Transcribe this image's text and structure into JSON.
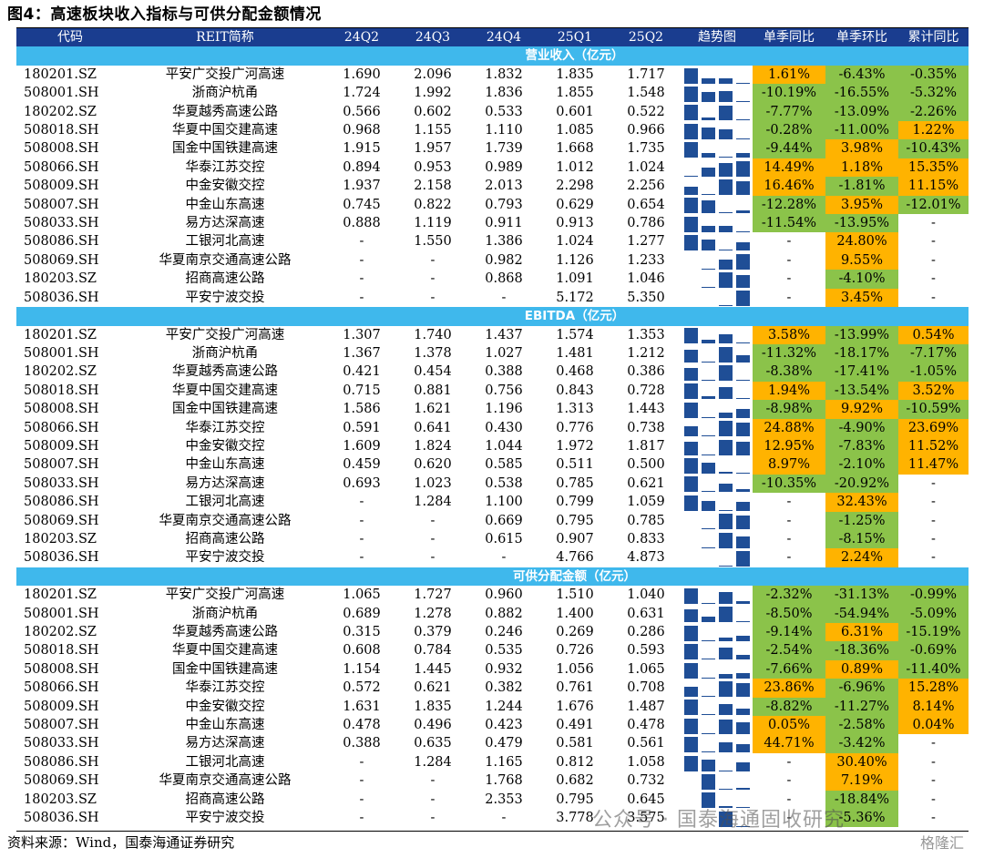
{
  "title": "图4：高速板块收入指标与可供分配金额情况",
  "headers": [
    "代码",
    "REIT简称",
    "24Q2",
    "24Q3",
    "24Q4",
    "25Q1",
    "25Q2",
    "趋势图",
    "单季同比",
    "单季环比",
    "累计同比"
  ],
  "sections": [
    {
      "title": "营业收入（亿元）",
      "rows": [
        {
          "code": "180201.SZ",
          "name": "平安广交投广河高速",
          "vals": [
            "1.690",
            "2.096",
            "1.832",
            "1.835",
            "1.717"
          ],
          "yoy": "1.61%",
          "qoq": "-6.43%",
          "cum": "-0.35%"
        },
        {
          "code": "508001.SH",
          "name": "浙商沪杭甬",
          "vals": [
            "1.724",
            "1.992",
            "1.836",
            "1.855",
            "1.548"
          ],
          "yoy": "-10.19%",
          "qoq": "-16.55%",
          "cum": "-5.32%"
        },
        {
          "code": "180202.SZ",
          "name": "华夏越秀高速公路",
          "vals": [
            "0.566",
            "0.602",
            "0.533",
            "0.601",
            "0.522"
          ],
          "yoy": "-7.77%",
          "qoq": "-13.09%",
          "cum": "-2.26%"
        },
        {
          "code": "508018.SH",
          "name": "华夏中国交建高速",
          "vals": [
            "0.968",
            "1.155",
            "1.110",
            "1.085",
            "0.966"
          ],
          "yoy": "-0.28%",
          "qoq": "-11.00%",
          "cum": "1.22%"
        },
        {
          "code": "508008.SH",
          "name": "国金中国铁建高速",
          "vals": [
            "1.915",
            "1.957",
            "1.739",
            "1.668",
            "1.735"
          ],
          "yoy": "-9.44%",
          "qoq": "3.98%",
          "cum": "-10.43%"
        },
        {
          "code": "508066.SH",
          "name": "华泰江苏交控",
          "vals": [
            "0.894",
            "0.953",
            "0.989",
            "1.012",
            "1.024"
          ],
          "yoy": "14.49%",
          "qoq": "1.18%",
          "cum": "15.35%"
        },
        {
          "code": "508009.SH",
          "name": "中金安徽交控",
          "vals": [
            "1.937",
            "2.158",
            "2.013",
            "2.298",
            "2.256"
          ],
          "yoy": "16.46%",
          "qoq": "-1.81%",
          "cum": "11.15%"
        },
        {
          "code": "508007.SH",
          "name": "中金山东高速",
          "vals": [
            "0.745",
            "0.822",
            "0.793",
            "0.629",
            "0.654"
          ],
          "yoy": "-12.28%",
          "qoq": "3.95%",
          "cum": "-12.01%"
        },
        {
          "code": "508033.SH",
          "name": "易方达深高速",
          "vals": [
            "0.888",
            "1.119",
            "0.911",
            "0.913",
            "0.786"
          ],
          "yoy": "-11.54%",
          "qoq": "-13.95%",
          "cum": "-"
        },
        {
          "code": "508086.SH",
          "name": "工银河北高速",
          "vals": [
            "-",
            "1.550",
            "1.386",
            "1.024",
            "1.277"
          ],
          "yoy": "-",
          "qoq": "24.80%",
          "cum": "-"
        },
        {
          "code": "508069.SH",
          "name": "华夏南京交通高速公路",
          "vals": [
            "-",
            "-",
            "0.982",
            "1.126",
            "1.233"
          ],
          "yoy": "-",
          "qoq": "9.55%",
          "cum": "-"
        },
        {
          "code": "180203.SZ",
          "name": "招商高速公路",
          "vals": [
            "-",
            "-",
            "0.868",
            "1.091",
            "1.046"
          ],
          "yoy": "-",
          "qoq": "-4.10%",
          "cum": "-"
        },
        {
          "code": "508036.SH",
          "name": "平安宁波交投",
          "vals": [
            "-",
            "-",
            "-",
            "5.172",
            "5.350"
          ],
          "yoy": "-",
          "qoq": "3.45%",
          "cum": "-"
        }
      ]
    },
    {
      "title": "EBITDA（亿元）",
      "rows": [
        {
          "code": "180201.SZ",
          "name": "平安广交投广河高速",
          "vals": [
            "1.307",
            "1.740",
            "1.437",
            "1.574",
            "1.353"
          ],
          "yoy": "3.58%",
          "qoq": "-13.99%",
          "cum": "0.54%"
        },
        {
          "code": "508001.SH",
          "name": "浙商沪杭甬",
          "vals": [
            "1.367",
            "1.378",
            "1.027",
            "1.481",
            "1.212"
          ],
          "yoy": "-11.32%",
          "qoq": "-18.17%",
          "cum": "-7.17%"
        },
        {
          "code": "180202.SZ",
          "name": "华夏越秀高速公路",
          "vals": [
            "0.421",
            "0.454",
            "0.388",
            "0.468",
            "0.386"
          ],
          "yoy": "-8.38%",
          "qoq": "-17.41%",
          "cum": "-1.05%"
        },
        {
          "code": "508018.SH",
          "name": "华夏中国交建高速",
          "vals": [
            "0.715",
            "0.881",
            "0.756",
            "0.843",
            "0.728"
          ],
          "yoy": "1.94%",
          "qoq": "-13.54%",
          "cum": "3.52%"
        },
        {
          "code": "508008.SH",
          "name": "国金中国铁建高速",
          "vals": [
            "1.586",
            "1.621",
            "1.196",
            "1.313",
            "1.443"
          ],
          "yoy": "-8.98%",
          "qoq": "9.92%",
          "cum": "-10.59%"
        },
        {
          "code": "508066.SH",
          "name": "华泰江苏交控",
          "vals": [
            "0.591",
            "0.641",
            "0.430",
            "0.776",
            "0.738"
          ],
          "yoy": "24.88%",
          "qoq": "-4.90%",
          "cum": "23.69%"
        },
        {
          "code": "508009.SH",
          "name": "中金安徽交控",
          "vals": [
            "1.609",
            "1.824",
            "1.044",
            "1.972",
            "1.817"
          ],
          "yoy": "12.95%",
          "qoq": "-7.83%",
          "cum": "11.52%"
        },
        {
          "code": "508007.SH",
          "name": "中金山东高速",
          "vals": [
            "0.459",
            "0.620",
            "0.585",
            "0.511",
            "0.500"
          ],
          "yoy": "8.97%",
          "qoq": "-2.10%",
          "cum": "11.47%"
        },
        {
          "code": "508033.SH",
          "name": "易方达深高速",
          "vals": [
            "0.693",
            "1.023",
            "0.538",
            "0.785",
            "0.621"
          ],
          "yoy": "-10.35%",
          "qoq": "-20.92%",
          "cum": "-"
        },
        {
          "code": "508086.SH",
          "name": "工银河北高速",
          "vals": [
            "-",
            "1.284",
            "1.100",
            "0.799",
            "1.059"
          ],
          "yoy": "-",
          "qoq": "32.43%",
          "cum": "-"
        },
        {
          "code": "508069.SH",
          "name": "华夏南京交通高速公路",
          "vals": [
            "-",
            "-",
            "0.669",
            "0.795",
            "0.785"
          ],
          "yoy": "-",
          "qoq": "-1.25%",
          "cum": "-"
        },
        {
          "code": "180203.SZ",
          "name": "招商高速公路",
          "vals": [
            "-",
            "-",
            "0.615",
            "0.907",
            "0.833"
          ],
          "yoy": "-",
          "qoq": "-8.15%",
          "cum": "-"
        },
        {
          "code": "508036.SH",
          "name": "平安宁波交投",
          "vals": [
            "-",
            "-",
            "-",
            "4.766",
            "4.873"
          ],
          "yoy": "-",
          "qoq": "2.24%",
          "cum": "-"
        }
      ]
    },
    {
      "title": "可供分配金额（亿元）",
      "rows": [
        {
          "code": "180201.SZ",
          "name": "平安广交投广河高速",
          "vals": [
            "1.065",
            "1.727",
            "0.960",
            "1.510",
            "1.040"
          ],
          "yoy": "-2.32%",
          "qoq": "-31.13%",
          "cum": "-0.99%"
        },
        {
          "code": "508001.SH",
          "name": "浙商沪杭甬",
          "vals": [
            "0.689",
            "1.278",
            "0.882",
            "1.400",
            "0.631"
          ],
          "yoy": "-8.50%",
          "qoq": "-54.94%",
          "cum": "-5.09%"
        },
        {
          "code": "180202.SZ",
          "name": "华夏越秀高速公路",
          "vals": [
            "0.315",
            "0.379",
            "0.246",
            "0.269",
            "0.286"
          ],
          "yoy": "-9.14%",
          "qoq": "6.31%",
          "cum": "-15.19%"
        },
        {
          "code": "508018.SH",
          "name": "华夏中国交建高速",
          "vals": [
            "0.608",
            "0.784",
            "0.535",
            "0.726",
            "0.593"
          ],
          "yoy": "-2.54%",
          "qoq": "-18.36%",
          "cum": "-0.69%"
        },
        {
          "code": "508008.SH",
          "name": "国金中国铁建高速",
          "vals": [
            "1.154",
            "1.445",
            "0.932",
            "1.056",
            "1.065"
          ],
          "yoy": "-7.66%",
          "qoq": "0.89%",
          "cum": "-11.40%"
        },
        {
          "code": "508066.SH",
          "name": "华泰江苏交控",
          "vals": [
            "0.572",
            "0.621",
            "0.382",
            "0.761",
            "0.708"
          ],
          "yoy": "23.86%",
          "qoq": "-6.96%",
          "cum": "15.28%"
        },
        {
          "code": "508009.SH",
          "name": "中金安徽交控",
          "vals": [
            "1.631",
            "1.835",
            "1.244",
            "1.676",
            "1.487"
          ],
          "yoy": "-8.82%",
          "qoq": "-11.27%",
          "cum": "8.14%"
        },
        {
          "code": "508007.SH",
          "name": "中金山东高速",
          "vals": [
            "0.478",
            "0.496",
            "0.423",
            "0.491",
            "0.478"
          ],
          "yoy": "0.05%",
          "qoq": "-2.58%",
          "cum": "0.04%"
        },
        {
          "code": "508033.SH",
          "name": "易方达深高速",
          "vals": [
            "0.388",
            "0.635",
            "0.479",
            "0.581",
            "0.561"
          ],
          "yoy": "44.71%",
          "qoq": "-3.42%",
          "cum": "-"
        },
        {
          "code": "508086.SH",
          "name": "工银河北高速",
          "vals": [
            "-",
            "1.284",
            "1.165",
            "0.812",
            "1.058"
          ],
          "yoy": "-",
          "qoq": "30.40%",
          "cum": "-"
        },
        {
          "code": "508069.SH",
          "name": "华夏南京交通高速公路",
          "vals": [
            "-",
            "-",
            "1.768",
            "0.682",
            "0.732"
          ],
          "yoy": "-",
          "qoq": "7.19%",
          "cum": "-"
        },
        {
          "code": "180203.SZ",
          "name": "招商高速公路",
          "vals": [
            "-",
            "-",
            "2.353",
            "0.795",
            "0.645"
          ],
          "yoy": "-",
          "qoq": "-18.84%",
          "cum": "-"
        },
        {
          "code": "508036.SH",
          "name": "平安宁波交投",
          "vals": [
            "-",
            "-",
            "-",
            "3.778",
            "3.575"
          ],
          "yoy": "-",
          "qoq": "-5.36%",
          "cum": "-"
        }
      ]
    }
  ],
  "footer": "资料来源：Wind，国泰海通证券研究",
  "watermark": "公众号 · 国泰海通固收研究",
  "watermark2": "格隆汇",
  "colors": {
    "header": "#1a3d8f",
    "section": "#3fb8ec",
    "positive": "#ffb300",
    "negative": "#8bc34a",
    "spark": "#1f4e96"
  }
}
